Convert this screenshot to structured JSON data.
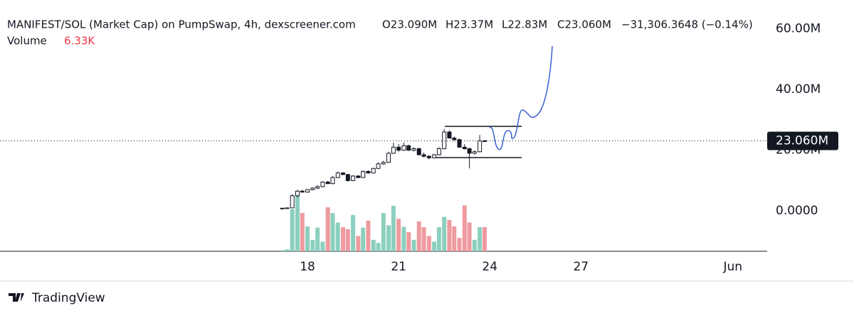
{
  "chart_data": {
    "type": "candlestick",
    "title": "MANIFEST/SOL (Market Cap) on PumpSwap, 4h, dexscreener.com",
    "ohlc_texts": [
      "O23.090M",
      "H23.37M",
      "L22.83M",
      "C23.060M",
      "−31,306.3648 (−0.14%)"
    ],
    "volume_label": "Volume",
    "volume_value": "6.33K",
    "x": [
      17.17,
      17.33,
      17.5,
      17.67,
      17.83,
      18,
      18.17,
      18.33,
      18.5,
      18.67,
      18.83,
      19,
      19.17,
      19.33,
      19.5,
      19.67,
      19.83,
      20,
      20.17,
      20.33,
      20.5,
      20.67,
      20.83,
      21,
      21.17,
      21.33,
      21.5,
      21.67,
      21.83,
      22,
      22.17,
      22.33,
      22.5,
      22.67,
      22.83,
      23,
      23.17,
      23.33,
      23.5,
      23.67,
      23.83
    ],
    "open": [
      800000,
      900000,
      1000000,
      5000000,
      6500000,
      6200000,
      7000000,
      7500000,
      8000000,
      9500000,
      9000000,
      11000000,
      12500000,
      12000000,
      10000000,
      11500000,
      11000000,
      13000000,
      12500000,
      14000000,
      15500000,
      16000000,
      19000000,
      21000000,
      20000000,
      21500000,
      20000000,
      20500000,
      18500000,
      18000000,
      17500000,
      18500000,
      20500000,
      26000000,
      24000000,
      23500000,
      21000000,
      20500000,
      19000000,
      19500000,
      23090000
    ],
    "high": [
      900000,
      1000000,
      5500000,
      7000000,
      7000000,
      7200000,
      7800000,
      8500000,
      9800000,
      9900000,
      11500000,
      13000000,
      12800000,
      12200000,
      11800000,
      11800000,
      13300000,
      13400000,
      14200000,
      16000000,
      16500000,
      19500000,
      22500000,
      22000000,
      22500000,
      21800000,
      21000000,
      20800000,
      19200000,
      18400000,
      18800000,
      21000000,
      27000000,
      26500000,
      24500000,
      23800000,
      22000000,
      20800000,
      20000000,
      25000000,
      23370000
    ],
    "low": [
      700000,
      800000,
      1000000,
      4500000,
      6000000,
      6000000,
      6800000,
      7200000,
      7800000,
      8800000,
      8800000,
      10800000,
      11800000,
      9600000,
      9800000,
      10800000,
      10900000,
      12300000,
      12400000,
      13800000,
      15200000,
      15800000,
      18800000,
      19500000,
      19800000,
      19800000,
      19600000,
      18300000,
      17600000,
      17000000,
      17300000,
      18300000,
      20300000,
      23800000,
      23000000,
      20800000,
      20200000,
      14000000,
      18600000,
      19300000,
      22830000
    ],
    "close": [
      900000,
      1000000,
      5000000,
      6500000,
      6200000,
      7000000,
      7500000,
      8000000,
      9500000,
      9000000,
      11000000,
      12500000,
      12000000,
      10000000,
      11500000,
      11000000,
      13000000,
      12500000,
      14000000,
      15500000,
      16000000,
      19000000,
      21000000,
      20000000,
      21500000,
      20000000,
      20500000,
      18500000,
      18000000,
      17500000,
      18500000,
      20500000,
      26000000,
      24000000,
      23500000,
      21000000,
      20500000,
      19000000,
      19500000,
      23090000,
      23060000
    ],
    "volume": [
      300,
      500,
      11000,
      15600,
      10000,
      6500,
      3000,
      6200,
      2500,
      11500,
      10000,
      7500,
      6300,
      5800,
      9500,
      4000,
      6200,
      8000,
      3000,
      2200,
      10000,
      6800,
      11900,
      8500,
      6400,
      5000,
      3000,
      7800,
      6300,
      4000,
      2500,
      6300,
      9000,
      8200,
      6500,
      3500,
      12000,
      7500,
      3000,
      6300,
      6330
    ],
    "up_color": "#ffffff",
    "down_color": "#131722",
    "volume_up_color": "#8ccfbe",
    "volume_down_color": "#ee9aa0",
    "volume_value_color": "#f23645",
    "xlim": [
      7.88,
      33.13
    ],
    "xticks": [
      18,
      21,
      24,
      27,
      {
        "value": 32,
        "label": "Jun"
      }
    ],
    "ylim": [
      -13300000,
      69500000
    ],
    "yticks": [
      {
        "value": 0,
        "label": "0.0000"
      },
      {
        "value": 20000000,
        "label": "20.00M"
      },
      {
        "value": 40000000,
        "label": "40.00M"
      },
      {
        "value": 60000000,
        "label": "60.00M"
      }
    ],
    "last_price": {
      "value": 23060000,
      "label": "23.060M"
    },
    "footer": "TradingView"
  }
}
